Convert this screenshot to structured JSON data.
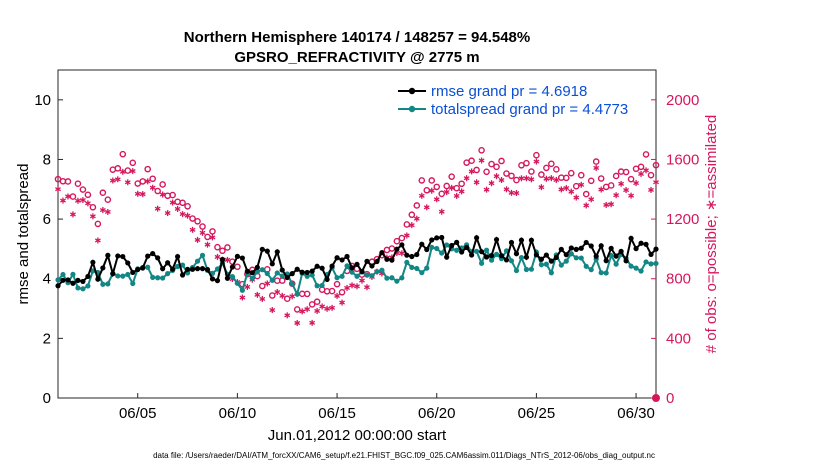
{
  "chart_data": {
    "type": "line",
    "title": "Northern Hemisphere 140174 / 148257 = 94.548%",
    "subtitle": "GPSRO_REFRACTIVITY @ 2775 m",
    "xlabel": "Jun.01,2012 00:00:00 start",
    "ylabel_left": "rmse and totalspread",
    "ylabel_right": "# of obs: o=possible; ∗=assimilated",
    "x_day_range": [
      1,
      31
    ],
    "ylim_left": [
      0,
      11
    ],
    "ylim_right": [
      0,
      2200
    ],
    "left_ticks": [
      "0",
      "2",
      "4",
      "6",
      "8",
      "10"
    ],
    "left_tick_values": [
      0,
      2,
      4,
      6,
      8,
      10
    ],
    "right_ticks": [
      "0",
      "400",
      "800",
      "1200",
      "1600",
      "2000"
    ],
    "right_tick_values": [
      0,
      400,
      800,
      1200,
      1600,
      2000
    ],
    "x_ticks": [
      "06/05",
      "06/10",
      "06/15",
      "06/20",
      "06/25",
      "06/30"
    ],
    "x_tick_days": [
      5,
      10,
      15,
      20,
      25,
      30
    ],
    "footer": "data file: /Users/raeder/DAI/ATM_forcXX/CAM6_setup/f.e21.FHIST_BGC.f09_025.CAM6assim.011/Diags_NTrS_2012-06/obs_diag_output.nc",
    "series_style": {
      "rmse_color": "#000000",
      "spread_color": "#138785",
      "obs_color": "#d6175d"
    },
    "legend": {
      "rmse": "rmse grand pr = 4.6918",
      "spread": "totalspread grand pr = 4.4773"
    },
    "segments": [
      {
        "day": 1.0,
        "rmse": 4.1,
        "spread": 3.8
      },
      {
        "day": 3.0,
        "rmse": 4.3,
        "spread": 4.0
      },
      {
        "day": 4.0,
        "rmse": 4.6,
        "spread": 3.9
      },
      {
        "day": 5.5,
        "rmse": 4.6,
        "spread": 4.2
      },
      {
        "day": 7.5,
        "rmse": 4.5,
        "spread": 4.5
      },
      {
        "day": 9.0,
        "rmse": 4.3,
        "spread": 4.5
      },
      {
        "day": 10.0,
        "rmse": 4.4,
        "spread": 3.8
      },
      {
        "day": 11.5,
        "rmse": 4.7,
        "spread": 4.3
      },
      {
        "day": 13.0,
        "rmse": 4.2,
        "spread": 3.8
      },
      {
        "day": 15.0,
        "rmse": 4.4,
        "spread": 4.1
      },
      {
        "day": 17.0,
        "rmse": 4.6,
        "spread": 4.1
      },
      {
        "day": 18.5,
        "rmse": 4.8,
        "spread": 4.3
      },
      {
        "day": 20.0,
        "rmse": 5.0,
        "spread": 4.8
      },
      {
        "day": 22.0,
        "rmse": 5.1,
        "spread": 4.8
      },
      {
        "day": 24.0,
        "rmse": 5.0,
        "spread": 4.6
      },
      {
        "day": 26.0,
        "rmse": 4.8,
        "spread": 4.5
      },
      {
        "day": 28.0,
        "rmse": 4.9,
        "spread": 4.5
      },
      {
        "day": 30.0,
        "rmse": 5.0,
        "spread": 4.6
      },
      {
        "day": 31.0,
        "rmse": 4.8,
        "spread": 4.4
      }
    ],
    "obs_bands": [
      {
        "day": 1.0,
        "possible": 1440,
        "assimilated": 1390
      },
      {
        "day": 2.0,
        "possible": 1400,
        "assimilated": 1300
      },
      {
        "day": 3.0,
        "possible": 1220,
        "assimilated": 1180
      },
      {
        "day": 4.0,
        "possible": 1580,
        "assimilated": 1460
      },
      {
        "day": 5.0,
        "possible": 1500,
        "assimilated": 1400
      },
      {
        "day": 6.0,
        "possible": 1400,
        "assimilated": 1320
      },
      {
        "day": 7.0,
        "possible": 1300,
        "assimilated": 1260
      },
      {
        "day": 8.0,
        "possible": 1200,
        "assimilated": 1150
      },
      {
        "day": 9.0,
        "possible": 1050,
        "assimilated": 980
      },
      {
        "day": 10.0,
        "possible": 860,
        "assimilated": 820
      },
      {
        "day": 11.0,
        "possible": 820,
        "assimilated": 780
      },
      {
        "day": 12.0,
        "possible": 760,
        "assimilated": 720
      },
      {
        "day": 13.0,
        "possible": 650,
        "assimilated": 610
      },
      {
        "day": 14.0,
        "possible": 720,
        "assimilated": 690
      },
      {
        "day": 15.0,
        "possible": 780,
        "assimilated": 740
      },
      {
        "day": 16.0,
        "possible": 850,
        "assimilated": 810
      },
      {
        "day": 17.0,
        "possible": 900,
        "assimilated": 860
      },
      {
        "day": 18.0,
        "possible": 1020,
        "assimilated": 980
      },
      {
        "day": 19.0,
        "possible": 1360,
        "assimilated": 1280
      },
      {
        "day": 20.0,
        "possible": 1420,
        "assimilated": 1330
      },
      {
        "day": 21.0,
        "possible": 1480,
        "assimilated": 1380
      },
      {
        "day": 22.0,
        "possible": 1580,
        "assimilated": 1500
      },
      {
        "day": 23.0,
        "possible": 1600,
        "assimilated": 1520
      },
      {
        "day": 24.0,
        "possible": 1500,
        "assimilated": 1430
      },
      {
        "day": 25.0,
        "possible": 1580,
        "assimilated": 1480
      },
      {
        "day": 26.0,
        "possible": 1520,
        "assimilated": 1440
      },
      {
        "day": 27.0,
        "possible": 1400,
        "assimilated": 1340
      },
      {
        "day": 28.0,
        "possible": 1500,
        "assimilated": 1420
      },
      {
        "day": 29.0,
        "possible": 1450,
        "assimilated": 1380
      },
      {
        "day": 30.0,
        "possible": 1520,
        "assimilated": 1400
      },
      {
        "day": 31.0,
        "possible": 1600,
        "assimilated": 1460
      }
    ],
    "zero_marker_day": 31.0
  }
}
